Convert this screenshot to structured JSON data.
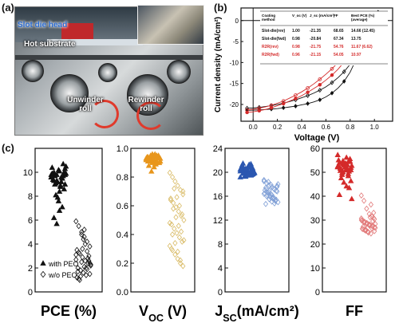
{
  "panel_labels": {
    "a": "(a)",
    "b": "(b)",
    "c": "(c)"
  },
  "photo": {
    "labels": {
      "slot_die_head": "Slot die head",
      "hot_substrate": "Hot substrate",
      "unwinder_roll": "Unwinder roll",
      "rewinder_roll": "Rewinder roll"
    }
  },
  "colors": {
    "black": "#111111",
    "red": "#d42a2a",
    "orange": "#e8961c",
    "orange_light": "#d9bb66",
    "blue": "#2a56b0",
    "blue_light": "#7f9fd6",
    "red_light": "#e27a7a",
    "gray": "#777777"
  },
  "chart_data": [
    {
      "type": "line",
      "xlabel": "Voltage (V)",
      "ylabel": "Current density (mA/cm²)",
      "xlim": [
        -0.1,
        1.15
      ],
      "ylim": [
        -24,
        3
      ],
      "xticks": [
        0.0,
        0.2,
        0.4,
        0.6,
        0.8,
        1.0
      ],
      "yticks": [
        0,
        -5,
        -10,
        -15,
        -20
      ],
      "series": [
        {
          "name": "Slot-die(rev)",
          "color": "#111111",
          "marker": "filled-diamond",
          "x": [
            -0.05,
            0.0,
            0.05,
            0.1,
            0.15,
            0.2,
            0.25,
            0.3,
            0.35,
            0.4,
            0.45,
            0.5,
            0.55,
            0.6,
            0.65,
            0.7,
            0.75,
            0.8,
            0.85,
            0.9,
            0.95,
            1.0,
            1.03
          ],
          "y": [
            -21.4,
            -21.35,
            -21.3,
            -21.2,
            -21.1,
            -21.0,
            -20.8,
            -20.6,
            -20.4,
            -20.1,
            -19.8,
            -19.4,
            -18.9,
            -18.2,
            -17.3,
            -16.1,
            -14.5,
            -12.3,
            -9.2,
            -5.3,
            -1.6,
            0.5,
            2.0
          ]
        },
        {
          "name": "Slot-die(fwd)",
          "color": "#111111",
          "marker": "open-diamond",
          "x": [
            -0.05,
            0.0,
            0.05,
            0.1,
            0.15,
            0.2,
            0.25,
            0.3,
            0.35,
            0.4,
            0.45,
            0.5,
            0.55,
            0.6,
            0.65,
            0.7,
            0.75,
            0.8,
            0.85,
            0.9,
            0.95,
            0.98,
            1.0
          ],
          "y": [
            -20.9,
            -20.84,
            -20.7,
            -20.5,
            -20.3,
            -20.0,
            -19.7,
            -19.3,
            -18.9,
            -18.4,
            -17.9,
            -17.3,
            -16.6,
            -15.8,
            -14.8,
            -13.6,
            -12.2,
            -10.4,
            -8.2,
            -5.4,
            -1.9,
            0.0,
            1.5
          ]
        },
        {
          "name": "R2R(rev)",
          "color": "#d42a2a",
          "marker": "filled-circle",
          "x": [
            -0.05,
            0.0,
            0.05,
            0.1,
            0.15,
            0.2,
            0.25,
            0.3,
            0.35,
            0.4,
            0.45,
            0.5,
            0.55,
            0.6,
            0.65,
            0.7,
            0.75,
            0.8,
            0.85,
            0.9,
            0.95,
            0.98,
            1.0
          ],
          "y": [
            -21.9,
            -21.75,
            -21.5,
            -21.2,
            -20.8,
            -20.3,
            -19.8,
            -19.2,
            -18.6,
            -17.9,
            -17.1,
            -16.2,
            -15.3,
            -14.2,
            -13.0,
            -11.6,
            -9.9,
            -8.0,
            -5.9,
            -3.5,
            -0.9,
            0.0,
            1.0
          ]
        },
        {
          "name": "R2R(fwd)",
          "color": "#d42a2a",
          "marker": "open-circle",
          "x": [
            -0.05,
            0.0,
            0.05,
            0.1,
            0.15,
            0.2,
            0.25,
            0.3,
            0.35,
            0.4,
            0.45,
            0.5,
            0.55,
            0.6,
            0.65,
            0.7,
            0.75,
            0.8,
            0.85,
            0.9,
            0.95,
            0.96,
            1.0
          ],
          "y": [
            -21.3,
            -21.15,
            -20.9,
            -20.6,
            -20.2,
            -19.7,
            -19.2,
            -18.5,
            -17.8,
            -17.0,
            -16.1,
            -15.1,
            -14.0,
            -12.8,
            -11.5,
            -10.0,
            -8.4,
            -6.6,
            -4.6,
            -2.5,
            -0.3,
            0.0,
            1.3
          ]
        }
      ],
      "table": {
        "headers": [
          "Coating method",
          "V_oc (V)",
          "J_sc (mA/cm²)",
          "FF",
          "Best PCE (%) (average)"
        ],
        "rows": [
          {
            "method": "Slot-die(rev)",
            "voc": "1.00",
            "jsc": "-21.35",
            "ff": "68.65",
            "pce": "14.66 (12.45)",
            "color": "#111111"
          },
          {
            "method": "Slot-die(fwd)",
            "voc": "0.98",
            "jsc": "-20.84",
            "ff": "67.34",
            "pce": "13.75",
            "color": "#111111"
          },
          {
            "method": "R2R(rev)",
            "voc": "0.98",
            "jsc": "-21.75",
            "ff": "54.76",
            "pce": "11.67 (6.62)",
            "color": "#d42a2a"
          },
          {
            "method": "R2R(fwd)",
            "voc": "0.96",
            "jsc": "-21.15",
            "ff": "54.05",
            "pce": "10.97",
            "color": "#d42a2a"
          }
        ]
      }
    },
    {
      "type": "scatter",
      "xlabel": "PCE (%)",
      "ylim": [
        0,
        12
      ],
      "yticks": [
        0,
        2,
        4,
        6,
        8,
        10
      ],
      "legend": [
        "with PEO",
        "w/o PEO"
      ],
      "series": [
        {
          "name": "with PEO",
          "marker": "filled-triangle",
          "color": "#111111",
          "values": [
            9.6,
            9.3,
            9.8,
            10.1,
            9.5,
            9.0,
            10.4,
            9.7,
            9.2,
            8.8,
            10.7,
            9.9,
            9.4,
            9.1,
            10.2,
            9.6,
            8.6,
            9.8,
            10.0,
            9.3,
            8.4,
            9.5,
            10.3,
            9.9,
            9.0,
            7.9,
            8.9,
            9.7,
            10.5,
            9.4,
            8.1,
            7.6,
            9.2,
            10.0,
            9.6,
            6.2,
            5.7,
            6.8,
            7.1,
            9.8
          ]
        },
        {
          "name": "w/o PEO",
          "marker": "open-diamond",
          "color": "#111111",
          "values": [
            5.9,
            5.5,
            5.0,
            4.6,
            4.2,
            3.8,
            3.5,
            3.2,
            2.9,
            2.6,
            2.4,
            2.2,
            2.0,
            1.8,
            1.6,
            1.4,
            3.0,
            2.7,
            3.3,
            2.5,
            2.1,
            1.9,
            1.5,
            1.2,
            1.0,
            3.6,
            4.0,
            2.8,
            2.3,
            1.7,
            1.3,
            4.4,
            2.0,
            2.6,
            3.1,
            1.1,
            4.8,
            5.2,
            3.4,
            2.4
          ]
        }
      ]
    },
    {
      "type": "scatter",
      "xlabel": "V_OC (V)",
      "ylim": [
        0,
        1.0
      ],
      "yticks": [
        0.0,
        0.2,
        0.4,
        0.6,
        0.8,
        1.0
      ],
      "series": [
        {
          "name": "with PEO",
          "marker": "filled-triangle",
          "color": "#e8961c",
          "values": [
            0.93,
            0.92,
            0.94,
            0.91,
            0.95,
            0.9,
            0.93,
            0.92,
            0.96,
            0.89,
            0.94,
            0.93,
            0.91,
            0.95,
            0.92,
            0.9,
            0.94,
            0.93,
            0.88,
            0.92,
            0.95,
            0.91,
            0.93,
            0.94,
            0.92,
            0.9,
            0.96,
            0.93,
            0.91,
            0.94,
            0.92,
            0.93,
            0.89,
            0.95,
            0.92,
            0.91,
            0.84,
            0.87,
            0.94,
            0.93
          ]
        },
        {
          "name": "w/o PEO",
          "marker": "open-diamond",
          "color": "#d9bb66",
          "values": [
            0.83,
            0.8,
            0.77,
            0.74,
            0.71,
            0.68,
            0.65,
            0.62,
            0.59,
            0.56,
            0.53,
            0.5,
            0.47,
            0.44,
            0.41,
            0.38,
            0.35,
            0.32,
            0.29,
            0.26,
            0.23,
            0.2,
            0.18,
            0.64,
            0.58,
            0.52,
            0.46,
            0.42,
            0.36,
            0.3,
            0.72,
            0.66,
            0.6,
            0.54,
            0.48,
            0.4,
            0.34,
            0.28,
            0.22,
            0.7
          ]
        }
      ]
    },
    {
      "type": "scatter",
      "xlabel": "J_SC(mA/cm²)",
      "ylim": [
        0,
        24
      ],
      "yticks": [
        0,
        4,
        8,
        12,
        16,
        20,
        24
      ],
      "series": [
        {
          "name": "with PEO",
          "marker": "filled-triangle",
          "color": "#2a56b0",
          "values": [
            20.2,
            19.8,
            20.6,
            21.0,
            19.5,
            20.1,
            20.8,
            19.9,
            20.4,
            21.3,
            19.6,
            20.0,
            20.7,
            19.4,
            20.3,
            21.1,
            19.7,
            20.5,
            20.9,
            19.3,
            20.2,
            21.4,
            19.8,
            20.6,
            20.1,
            19.5,
            20.8,
            20.3,
            19.9,
            21.2,
            20.4,
            19.6,
            20.0,
            20.7,
            19.2,
            21.5,
            20.5,
            19.7,
            20.9,
            20.2
          ]
        },
        {
          "name": "w/o PEO",
          "marker": "open-diamond",
          "color": "#7f9fd6",
          "values": [
            18.7,
            18.2,
            17.8,
            17.5,
            17.1,
            16.8,
            16.5,
            16.2,
            15.9,
            15.6,
            15.3,
            15.0,
            14.7,
            18.4,
            17.9,
            17.3,
            16.9,
            16.4,
            16.0,
            15.5,
            15.1,
            14.8,
            17.6,
            17.0,
            16.6,
            16.1,
            15.7,
            15.2,
            18.0,
            17.4,
            16.7,
            16.3,
            15.8,
            15.4,
            18.5,
            17.2,
            16.9,
            16.2,
            15.6,
            17.7
          ]
        }
      ]
    },
    {
      "type": "scatter",
      "xlabel": "FF",
      "ylim": [
        0,
        60
      ],
      "yticks": [
        0,
        10,
        20,
        30,
        40,
        50,
        60
      ],
      "series": [
        {
          "name": "with PEO",
          "marker": "filled-triangle",
          "color": "#d42a2a",
          "values": [
            52.5,
            51.8,
            53.6,
            50.9,
            54.4,
            52.0,
            55.1,
            51.2,
            53.0,
            56.2,
            50.4,
            52.8,
            54.0,
            49.8,
            53.3,
            51.5,
            55.6,
            52.2,
            50.7,
            54.8,
            53.8,
            49.4,
            51.0,
            52.6,
            47.6,
            45.8,
            44.2,
            43.5,
            38.9,
            40.6,
            49.0,
            52.1,
            53.1,
            54.6,
            57.3,
            51.6,
            50.2,
            52.9,
            48.5,
            46.4
          ]
        },
        {
          "name": "w/o PEO",
          "marker": "open-diamond",
          "color": "#e27a7a",
          "values": [
            40.3,
            38.1,
            34.8,
            32.6,
            31.5,
            30.4,
            29.8,
            29.2,
            28.6,
            28.0,
            27.4,
            26.8,
            26.2,
            25.6,
            25.0,
            24.4,
            30.9,
            30.0,
            29.4,
            28.8,
            28.2,
            27.6,
            27.0,
            26.4,
            25.8,
            25.2,
            31.2,
            29.6,
            28.4,
            27.2,
            26.0,
            24.8,
            36.5,
            33.1,
            30.7,
            29.0,
            28.3,
            27.8,
            26.6,
            25.4
          ]
        }
      ]
    }
  ]
}
